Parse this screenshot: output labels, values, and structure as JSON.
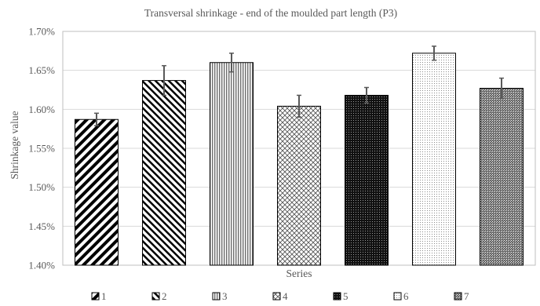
{
  "chart_data": {
    "type": "bar",
    "title": "Transversal  shrinkage  - end of the moulded part length (P3)",
    "xlabel": "Series",
    "ylabel": "Shrinkage  value",
    "ylim": [
      1.4,
      1.7
    ],
    "yticks": [
      "1.40%",
      "1.45%",
      "1.50%",
      "1.55%",
      "1.60%",
      "1.65%",
      "1.70%"
    ],
    "ytick_values": [
      1.4,
      1.45,
      1.5,
      1.55,
      1.6,
      1.65,
      1.7
    ],
    "grid": true,
    "legend_position": "bottom",
    "categories": [
      "1",
      "2",
      "3",
      "4",
      "5",
      "6",
      "7"
    ],
    "values": [
      1.587,
      1.637,
      1.66,
      1.604,
      1.618,
      1.672,
      1.627
    ],
    "errors": [
      0.008,
      0.019,
      0.012,
      0.014,
      0.01,
      0.009,
      0.013
    ],
    "patterns": [
      "diag-right",
      "diag-left",
      "vertical-lines",
      "crosshatch",
      "dark-grid",
      "light-dots",
      "dark-dots"
    ],
    "colors": {
      "bar_stroke": "#000000",
      "grid": "#d9d9d9",
      "text": "#595959",
      "error": "#595959"
    }
  }
}
